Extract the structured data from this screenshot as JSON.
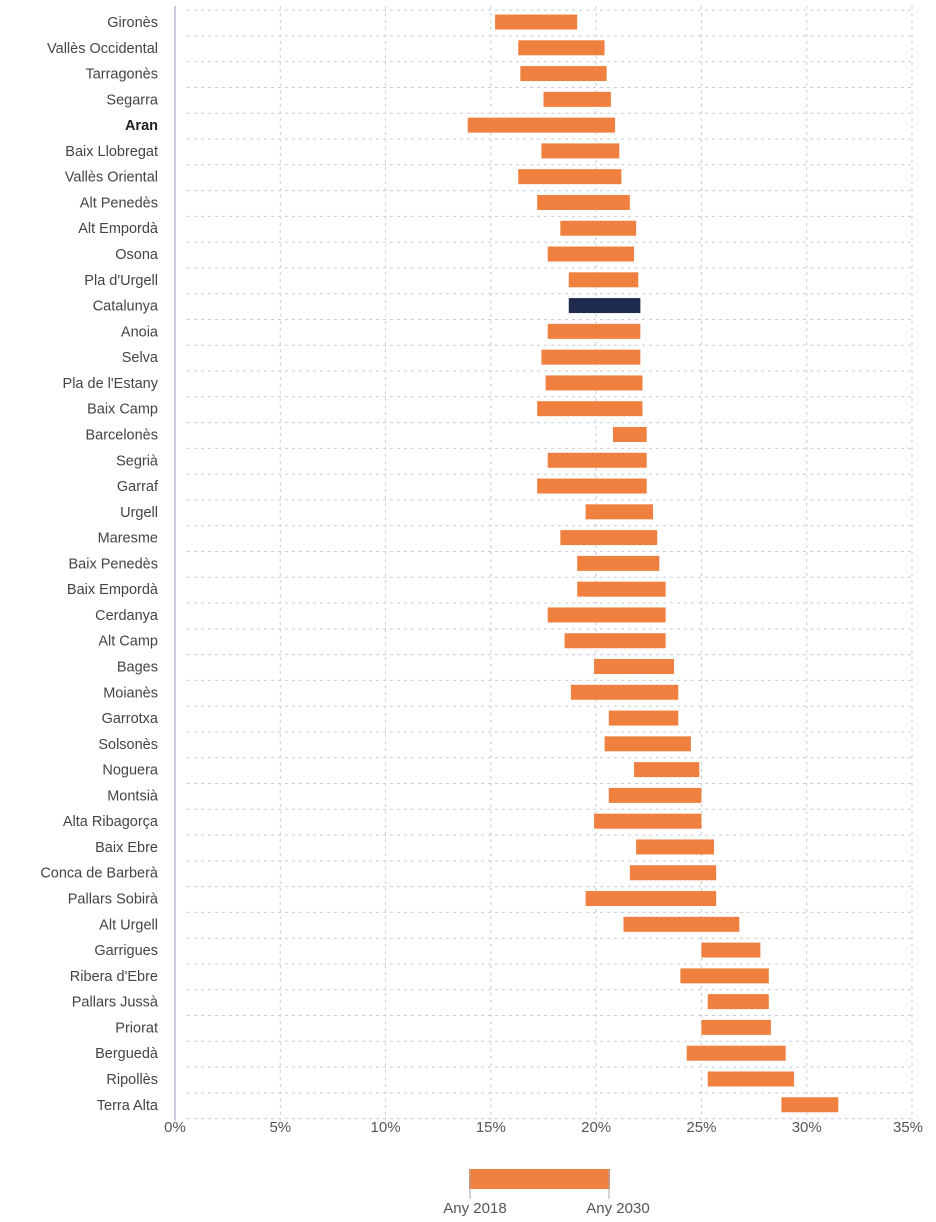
{
  "chart_data": {
    "type": "bar",
    "orientation": "horizontal",
    "subtype": "range",
    "categories": [
      "Gironès",
      "Vallès Occidental",
      "Tarragonès",
      "Segarra",
      "Aran",
      "Baix Llobregat",
      "Vallès Oriental",
      "Alt Penedès",
      "Alt Empordà",
      "Osona",
      "Pla d'Urgell",
      "Catalunya",
      "Anoia",
      "Selva",
      "Pla de l'Estany",
      "Baix Camp",
      "Barcelonès",
      "Segrià",
      "Garraf",
      "Urgell",
      "Maresme",
      "Baix Penedès",
      "Baix Empordà",
      "Cerdanya",
      "Alt Camp",
      "Bages",
      "Moianès",
      "Garrotxa",
      "Solsonès",
      "Noguera",
      "Montsià",
      "Alta Ribagorça",
      "Baix Ebre",
      "Conca de Barberà",
      "Pallars Sobirà",
      "Alt Urgell",
      "Garrigues",
      "Ribera d'Ebre",
      "Pallars Jussà",
      "Priorat",
      "Berguedà",
      "Ripollès",
      "Terra Alta"
    ],
    "bold_categories": [
      "Aran"
    ],
    "series": [
      {
        "name": "Any 2018",
        "values": [
          15.2,
          16.3,
          16.4,
          17.5,
          13.9,
          17.4,
          16.3,
          17.2,
          18.3,
          17.7,
          18.7,
          18.7,
          17.7,
          17.4,
          17.6,
          17.2,
          20.8,
          17.7,
          17.2,
          19.5,
          18.3,
          19.1,
          19.1,
          17.7,
          18.5,
          19.9,
          18.8,
          20.6,
          20.4,
          21.8,
          20.6,
          19.9,
          21.9,
          21.6,
          19.5,
          21.3,
          25.0,
          24.0,
          25.3,
          25.0,
          24.3,
          25.3,
          28.8
        ]
      },
      {
        "name": "Any 2030",
        "values": [
          19.1,
          20.4,
          20.5,
          20.7,
          20.9,
          21.1,
          21.2,
          21.6,
          21.9,
          21.8,
          22.0,
          22.1,
          22.1,
          22.1,
          22.2,
          22.2,
          22.4,
          22.4,
          22.4,
          22.7,
          22.9,
          23.0,
          23.3,
          23.3,
          23.3,
          23.7,
          23.9,
          23.9,
          24.5,
          24.9,
          25.0,
          25.0,
          25.6,
          25.7,
          25.7,
          26.8,
          27.8,
          28.2,
          28.2,
          28.3,
          29.0,
          29.4,
          31.5
        ]
      }
    ],
    "highlight_category": "Catalunya",
    "colors": {
      "bar": "#F08040",
      "highlight": "#1F2A4F",
      "grid": "#C8CCD6",
      "axis": "#9098C0"
    },
    "x_ticks": [
      "0%",
      "5%",
      "10%",
      "15%",
      "20%",
      "25%",
      "30%",
      "35%"
    ],
    "xlim": [
      0,
      35
    ],
    "grid": true,
    "legend": {
      "placement": "bottom-center",
      "start_label": "Any 2018",
      "end_label": "Any 2030"
    }
  }
}
